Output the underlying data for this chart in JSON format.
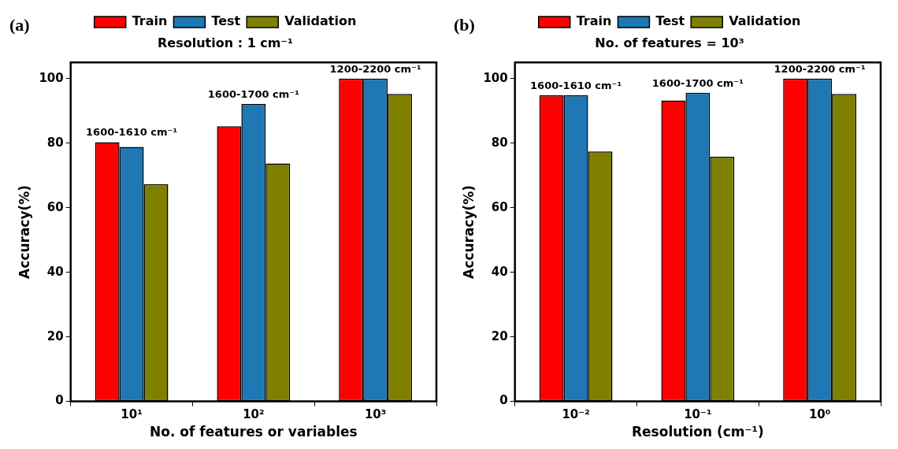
{
  "chart_data": [
    {
      "type": "bar",
      "title": "Resolution : 1 cm⁻¹",
      "xlabel": "No. of features or variables",
      "ylabel": "Accuracy(%)",
      "categories": [
        "10¹",
        "10²",
        "10³"
      ],
      "series": [
        {
          "name": "Train",
          "color": "#ff0000",
          "values": [
            80.3,
            85.2,
            100
          ]
        },
        {
          "name": "Test",
          "color": "#1f77b4",
          "values": [
            78.8,
            92.1,
            100
          ]
        },
        {
          "name": "Validation",
          "color": "#808000",
          "values": [
            67.3,
            73.7,
            95.2
          ]
        }
      ],
      "ylim": [
        0,
        105
      ],
      "yticks": [
        0,
        20,
        40,
        60,
        80,
        100
      ],
      "grid": false,
      "legend": "top",
      "annotations": [
        "(a)",
        "1600-1610 cm⁻¹",
        "1600-1700 cm⁻¹",
        "1200-2200 cm⁻¹"
      ]
    },
    {
      "type": "bar",
      "title": "No. of features = 10³",
      "xlabel": "Resolution (cm⁻¹)",
      "ylabel": "Accuracy(%)",
      "categories": [
        "10⁻²",
        "10⁻¹",
        "10⁰"
      ],
      "series": [
        {
          "name": "Train",
          "color": "#ff0000",
          "values": [
            94.8,
            93.2,
            100
          ]
        },
        {
          "name": "Test",
          "color": "#1f77b4",
          "values": [
            94.8,
            95.6,
            100
          ]
        },
        {
          "name": "Validation",
          "color": "#808000",
          "values": [
            77.4,
            75.8,
            95.2
          ]
        }
      ],
      "ylim": [
        0,
        105
      ],
      "yticks": [
        0,
        20,
        40,
        60,
        80,
        100
      ],
      "grid": false,
      "legend": "top",
      "annotations": [
        "(b)",
        "1600-1610 cm⁻¹",
        "1600-1700 cm⁻¹",
        "1200-2200 cm⁻¹"
      ]
    }
  ]
}
